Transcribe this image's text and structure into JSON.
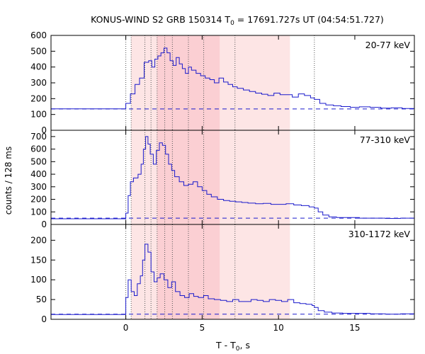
{
  "chart_data": {
    "type": "line",
    "title_prefix": "KONUS-WIND S2 GRB 150314 T",
    "title_sub": "0",
    "title_suffix": " = 17691.727s UT (04:54:51.727)",
    "ylabel": "counts / 128 ms",
    "xlabel_prefix": "T - T",
    "xlabel_sub": "0",
    "xlabel_suffix": ", s",
    "xlim": [
      -4.9,
      18.9
    ],
    "xticks": [
      0,
      5,
      10,
      15
    ],
    "xtick_labels": [
      "0",
      "5",
      "10",
      "15"
    ],
    "colors": {
      "curve": "#1a1acc",
      "background_dash": "#1a1acc",
      "shade_light": "#fde5e5",
      "shade_dark": "#fbcfd3",
      "frame": "#000000"
    },
    "vertical_markers": [
      0.0,
      0.35,
      1.25,
      1.65,
      2.05,
      2.55,
      3.05,
      4.1,
      5.1,
      7.15,
      12.35
    ],
    "shaded_regions": [
      {
        "from": 0.35,
        "to": 10.75,
        "shade": "light"
      },
      {
        "from": 2.05,
        "to": 6.15,
        "shade": "dark"
      }
    ],
    "panels": [
      {
        "label": "20-77 keV",
        "ylim": [
          0,
          600
        ],
        "yticks": [
          0,
          100,
          200,
          300,
          400,
          500,
          600
        ],
        "ytick_labels": [
          "0",
          "100",
          "200",
          "300",
          "400",
          "500",
          "600"
        ],
        "background_level": 135,
        "points": [
          [
            -4.9,
            135
          ],
          [
            -0.3,
            135
          ],
          [
            0,
            170
          ],
          [
            0.3,
            230
          ],
          [
            0.6,
            290
          ],
          [
            0.9,
            330
          ],
          [
            1.2,
            430
          ],
          [
            1.5,
            440
          ],
          [
            1.7,
            400
          ],
          [
            1.9,
            450
          ],
          [
            2.1,
            470
          ],
          [
            2.3,
            490
          ],
          [
            2.5,
            520
          ],
          [
            2.7,
            490
          ],
          [
            2.9,
            440
          ],
          [
            3.1,
            410
          ],
          [
            3.3,
            460
          ],
          [
            3.5,
            420
          ],
          [
            3.7,
            390
          ],
          [
            3.9,
            360
          ],
          [
            4.1,
            400
          ],
          [
            4.3,
            380
          ],
          [
            4.6,
            360
          ],
          [
            4.9,
            345
          ],
          [
            5.2,
            330
          ],
          [
            5.5,
            320
          ],
          [
            5.8,
            300
          ],
          [
            6.1,
            330
          ],
          [
            6.4,
            305
          ],
          [
            6.7,
            290
          ],
          [
            7.0,
            275
          ],
          [
            7.3,
            265
          ],
          [
            7.7,
            255
          ],
          [
            8.1,
            245
          ],
          [
            8.5,
            235
          ],
          [
            8.9,
            228
          ],
          [
            9.3,
            220
          ],
          [
            9.7,
            235
          ],
          [
            10.1,
            225
          ],
          [
            10.5,
            225
          ],
          [
            10.9,
            210
          ],
          [
            11.3,
            230
          ],
          [
            11.7,
            220
          ],
          [
            12.1,
            205
          ],
          [
            12.35,
            195
          ],
          [
            12.7,
            170
          ],
          [
            13.1,
            160
          ],
          [
            13.6,
            155
          ],
          [
            14.1,
            150
          ],
          [
            14.7,
            145
          ],
          [
            15.3,
            148
          ],
          [
            16.0,
            145
          ],
          [
            16.7,
            140
          ],
          [
            17.4,
            142
          ],
          [
            18.1,
            138
          ],
          [
            18.9,
            135
          ]
        ]
      },
      {
        "label": "77-310 keV",
        "ylim": [
          0,
          750
        ],
        "yticks": [
          0,
          100,
          200,
          300,
          400,
          500,
          600,
          700
        ],
        "ytick_labels": [
          "0",
          "100",
          "200",
          "300",
          "400",
          "500",
          "600",
          "700"
        ],
        "background_level": 50,
        "points": [
          [
            -4.9,
            45
          ],
          [
            -0.2,
            45
          ],
          [
            0,
            90
          ],
          [
            0.15,
            230
          ],
          [
            0.3,
            340
          ],
          [
            0.5,
            370
          ],
          [
            0.8,
            400
          ],
          [
            1.0,
            480
          ],
          [
            1.15,
            600
          ],
          [
            1.3,
            700
          ],
          [
            1.45,
            640
          ],
          [
            1.6,
            560
          ],
          [
            1.8,
            480
          ],
          [
            2.0,
            590
          ],
          [
            2.2,
            650
          ],
          [
            2.4,
            630
          ],
          [
            2.6,
            560
          ],
          [
            2.8,
            480
          ],
          [
            3.0,
            430
          ],
          [
            3.2,
            380
          ],
          [
            3.5,
            340
          ],
          [
            3.8,
            310
          ],
          [
            4.1,
            320
          ],
          [
            4.4,
            340
          ],
          [
            4.7,
            300
          ],
          [
            5.0,
            270
          ],
          [
            5.3,
            240
          ],
          [
            5.6,
            220
          ],
          [
            6.0,
            200
          ],
          [
            6.4,
            190
          ],
          [
            6.8,
            185
          ],
          [
            7.2,
            180
          ],
          [
            7.6,
            175
          ],
          [
            8.0,
            170
          ],
          [
            8.5,
            165
          ],
          [
            9.0,
            168
          ],
          [
            9.5,
            160
          ],
          [
            10.0,
            160
          ],
          [
            10.5,
            165
          ],
          [
            11.0,
            155
          ],
          [
            11.5,
            150
          ],
          [
            12.0,
            140
          ],
          [
            12.35,
            130
          ],
          [
            12.6,
            100
          ],
          [
            12.9,
            75
          ],
          [
            13.3,
            60
          ],
          [
            13.8,
            55
          ],
          [
            14.5,
            55
          ],
          [
            15.3,
            50
          ],
          [
            16.2,
            50
          ],
          [
            17.0,
            48
          ],
          [
            18.0,
            50
          ],
          [
            18.9,
            48
          ]
        ]
      },
      {
        "label": "310-1172 keV",
        "ylim": [
          0,
          240
        ],
        "yticks": [
          0,
          50,
          100,
          150,
          200
        ],
        "ytick_labels": [
          "0",
          "50",
          "100",
          "150",
          "200"
        ],
        "background_level": 13,
        "points": [
          [
            -4.9,
            12
          ],
          [
            -0.2,
            12
          ],
          [
            0,
            55
          ],
          [
            0.15,
            100
          ],
          [
            0.35,
            70
          ],
          [
            0.55,
            60
          ],
          [
            0.75,
            90
          ],
          [
            0.95,
            110
          ],
          [
            1.1,
            150
          ],
          [
            1.25,
            190
          ],
          [
            1.45,
            170
          ],
          [
            1.65,
            120
          ],
          [
            1.85,
            95
          ],
          [
            2.05,
            105
          ],
          [
            2.25,
            115
          ],
          [
            2.5,
            100
          ],
          [
            2.75,
            80
          ],
          [
            3.0,
            95
          ],
          [
            3.25,
            70
          ],
          [
            3.55,
            60
          ],
          [
            3.85,
            55
          ],
          [
            4.15,
            65
          ],
          [
            4.45,
            58
          ],
          [
            4.75,
            55
          ],
          [
            5.1,
            60
          ],
          [
            5.4,
            52
          ],
          [
            5.8,
            50
          ],
          [
            6.2,
            48
          ],
          [
            6.6,
            45
          ],
          [
            7.0,
            50
          ],
          [
            7.4,
            45
          ],
          [
            7.8,
            45
          ],
          [
            8.2,
            50
          ],
          [
            8.6,
            48
          ],
          [
            9.0,
            45
          ],
          [
            9.4,
            50
          ],
          [
            9.8,
            48
          ],
          [
            10.2,
            45
          ],
          [
            10.6,
            50
          ],
          [
            11.0,
            42
          ],
          [
            11.4,
            40
          ],
          [
            11.8,
            38
          ],
          [
            12.2,
            35
          ],
          [
            12.35,
            30
          ],
          [
            12.6,
            22
          ],
          [
            13.0,
            18
          ],
          [
            13.5,
            16
          ],
          [
            14.2,
            15
          ],
          [
            15.0,
            15
          ],
          [
            16.0,
            14
          ],
          [
            17.0,
            13
          ],
          [
            18.0,
            14
          ],
          [
            18.9,
            15
          ]
        ]
      }
    ]
  }
}
